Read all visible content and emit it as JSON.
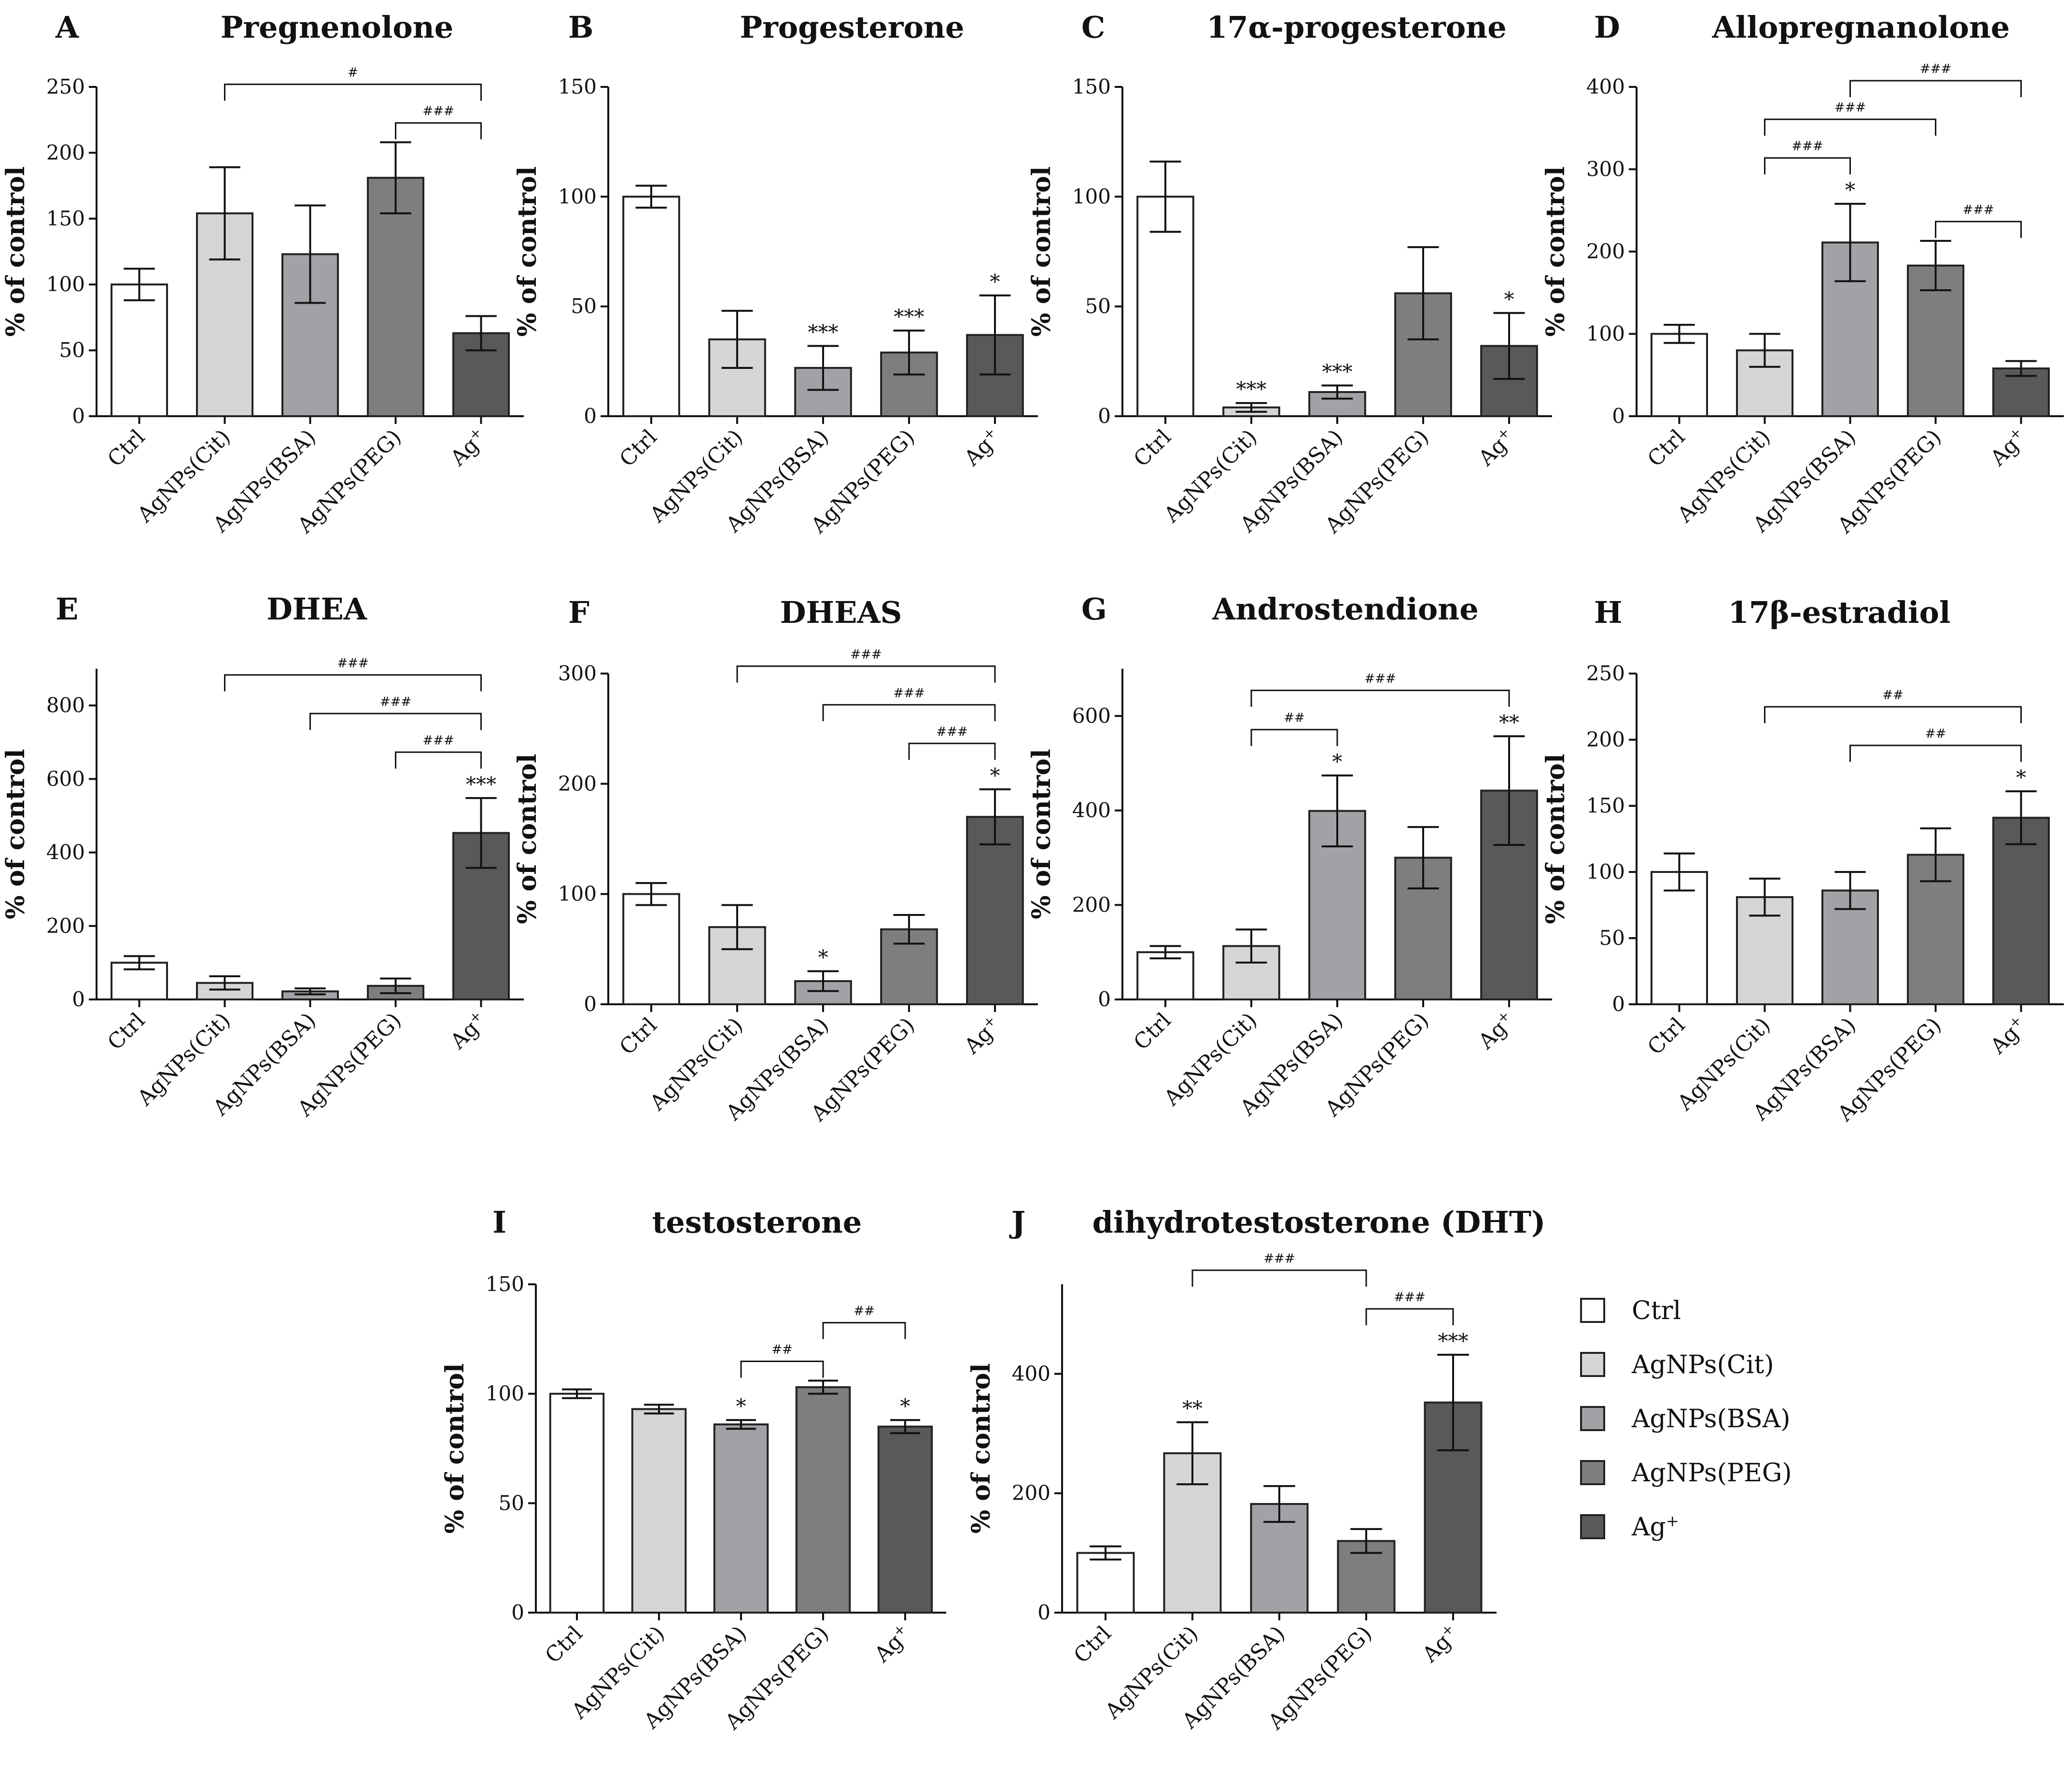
{
  "colors": {
    "Ctrl": "#ffffff",
    "AgNPs(Cit)": "#d5d5d5",
    "AgNPs(BSA)": "#a2a2a6",
    "AgNPs(PEG)": "#7e7e7e",
    "Ag+": "#595959",
    "stroke": "#222222"
  },
  "legend": {
    "items": [
      {
        "label": "Ctrl",
        "key": "Ctrl"
      },
      {
        "label": "AgNPs(Cit)",
        "key": "AgNPs(Cit)"
      },
      {
        "label": "AgNPs(BSA)",
        "key": "AgNPs(BSA)"
      },
      {
        "label": "AgNPs(PEG)",
        "key": "AgNPs(PEG)"
      },
      {
        "label": "Ag",
        "sup": "+",
        "key": "Ag+"
      }
    ]
  },
  "chart_data": [
    {
      "type": "bar",
      "panel": "A",
      "title": "Pregnenolone",
      "ylabel": "% of control",
      "categories": [
        "Ctrl",
        "AgNPs(Cit)",
        "AgNPs(BSA)",
        "AgNPs(PEG)",
        "Ag+"
      ],
      "values": [
        100,
        154,
        123,
        181,
        63
      ],
      "errors": [
        12,
        35,
        37,
        27,
        13
      ],
      "stars": [
        "",
        "",
        "",
        "",
        ""
      ],
      "ylim": [
        0,
        250
      ],
      "yticks": [
        0,
        50,
        100,
        150,
        200,
        250
      ],
      "brackets": [
        {
          "from": 1,
          "to": 4,
          "label": "#"
        },
        {
          "from": 3,
          "to": 4,
          "label": "###"
        }
      ]
    },
    {
      "type": "bar",
      "panel": "B",
      "title": "Progesterone",
      "ylabel": "% of control",
      "categories": [
        "Ctrl",
        "AgNPs(Cit)",
        "AgNPs(BSA)",
        "AgNPs(PEG)",
        "Ag+"
      ],
      "values": [
        100,
        35,
        22,
        29,
        37
      ],
      "errors": [
        5,
        13,
        10,
        10,
        18
      ],
      "stars": [
        "",
        "",
        "***",
        "***",
        "*"
      ],
      "ylim": [
        0,
        150
      ],
      "yticks": [
        0,
        50,
        100,
        150
      ],
      "brackets": []
    },
    {
      "type": "bar",
      "panel": "C",
      "title": "17α-progesterone",
      "ylabel": "% of control",
      "categories": [
        "Ctrl",
        "AgNPs(Cit)",
        "AgNPs(BSA)",
        "AgNPs(PEG)",
        "Ag+"
      ],
      "values": [
        100,
        4,
        11,
        56,
        32
      ],
      "errors": [
        16,
        2,
        3,
        21,
        15
      ],
      "stars": [
        "",
        "***",
        "***",
        "",
        "*"
      ],
      "ylim": [
        0,
        150
      ],
      "yticks": [
        0,
        50,
        100,
        150
      ],
      "brackets": []
    },
    {
      "type": "bar",
      "panel": "D",
      "title": "Allopregnanolone",
      "ylabel": "% of control",
      "categories": [
        "Ctrl",
        "AgNPs(Cit)",
        "AgNPs(BSA)",
        "AgNPs(PEG)",
        "Ag+"
      ],
      "values": [
        100,
        80,
        211,
        183,
        58
      ],
      "errors": [
        11,
        20,
        47,
        30,
        9
      ],
      "stars": [
        "",
        "",
        "*",
        "",
        ""
      ],
      "ylim": [
        0,
        400
      ],
      "yticks": [
        0,
        100,
        200,
        300,
        400
      ],
      "brackets": [
        {
          "from": 1,
          "to": 3,
          "label": "###"
        },
        {
          "from": 1,
          "to": 2,
          "label": "###"
        },
        {
          "from": 2,
          "to": 4,
          "label": "###"
        },
        {
          "from": 3,
          "to": 4,
          "label": "###"
        }
      ]
    },
    {
      "type": "bar",
      "panel": "E",
      "title": "DHEA",
      "ylabel": "% of control",
      "categories": [
        "Ctrl",
        "AgNPs(Cit)",
        "AgNPs(BSA)",
        "AgNPs(PEG)",
        "Ag+"
      ],
      "values": [
        100,
        45,
        22,
        37,
        453
      ],
      "errors": [
        18,
        18,
        8,
        20,
        95
      ],
      "stars": [
        "",
        "",
        "",
        "",
        "***"
      ],
      "ylim": [
        0,
        900
      ],
      "yticks": [
        0,
        200,
        400,
        600,
        800
      ],
      "brackets": [
        {
          "from": 1,
          "to": 4,
          "label": "###"
        },
        {
          "from": 2,
          "to": 4,
          "label": "###"
        },
        {
          "from": 3,
          "to": 4,
          "label": "###"
        }
      ]
    },
    {
      "type": "bar",
      "panel": "F",
      "title": "DHEAS",
      "ylabel": "% of control",
      "categories": [
        "Ctrl",
        "AgNPs(Cit)",
        "AgNPs(BSA)",
        "AgNPs(PEG)",
        "Ag+"
      ],
      "values": [
        100,
        70,
        21,
        68,
        170
      ],
      "errors": [
        10,
        20,
        9,
        13,
        25
      ],
      "stars": [
        "",
        "",
        "*",
        "",
        "*"
      ],
      "ylim": [
        0,
        300
      ],
      "yticks": [
        0,
        100,
        200,
        300
      ],
      "brackets": [
        {
          "from": 1,
          "to": 4,
          "label": "###"
        },
        {
          "from": 2,
          "to": 4,
          "label": "###"
        },
        {
          "from": 3,
          "to": 4,
          "label": "###"
        }
      ]
    },
    {
      "type": "bar",
      "panel": "G",
      "title": "Androstendione",
      "ylabel": "% of control",
      "categories": [
        "Ctrl",
        "AgNPs(Cit)",
        "AgNPs(BSA)",
        "AgNPs(PEG)",
        "Ag+"
      ],
      "values": [
        100,
        113,
        399,
        300,
        442
      ],
      "errors": [
        13,
        35,
        75,
        65,
        115
      ],
      "stars": [
        "",
        "",
        "*",
        "",
        "**"
      ],
      "ylim": [
        0,
        700
      ],
      "yticks": [
        0,
        200,
        400,
        600
      ],
      "brackets": [
        {
          "from": 1,
          "to": 4,
          "label": "###"
        },
        {
          "from": 1,
          "to": 2,
          "label": "##"
        }
      ]
    },
    {
      "type": "bar",
      "panel": "H",
      "title": "17β-estradiol",
      "ylabel": "% of control",
      "categories": [
        "Ctrl",
        "AgNPs(Cit)",
        "AgNPs(BSA)",
        "AgNPs(PEG)",
        "Ag+"
      ],
      "values": [
        100,
        81,
        86,
        113,
        141
      ],
      "errors": [
        14,
        14,
        14,
        20,
        20
      ],
      "stars": [
        "",
        "",
        "",
        "",
        "*"
      ],
      "ylim": [
        0,
        250
      ],
      "yticks": [
        0,
        50,
        100,
        150,
        200,
        250
      ],
      "brackets": [
        {
          "from": 1,
          "to": 4,
          "label": "##"
        },
        {
          "from": 2,
          "to": 4,
          "label": "##"
        }
      ]
    },
    {
      "type": "bar",
      "panel": "I",
      "title": "testosterone",
      "ylabel": "% of control",
      "categories": [
        "Ctrl",
        "AgNPs(Cit)",
        "AgNPs(BSA)",
        "AgNPs(PEG)",
        "Ag+"
      ],
      "values": [
        100,
        93,
        86,
        103,
        85
      ],
      "errors": [
        2,
        2,
        2,
        3,
        3
      ],
      "stars": [
        "",
        "",
        "*",
        "",
        "*"
      ],
      "ylim": [
        0,
        150
      ],
      "yticks": [
        0,
        50,
        100,
        150
      ],
      "brackets": [
        {
          "from": 2,
          "to": 3,
          "label": "##"
        },
        {
          "from": 3,
          "to": 4,
          "label": "##"
        }
      ]
    },
    {
      "type": "bar",
      "panel": "J",
      "title": "dihydrotestosterone (DHT)",
      "ylabel": "% of control",
      "categories": [
        "Ctrl",
        "AgNPs(Cit)",
        "AgNPs(BSA)",
        "AgNPs(PEG)",
        "Ag+"
      ],
      "values": [
        100,
        267,
        182,
        120,
        352
      ],
      "errors": [
        11,
        52,
        30,
        20,
        80
      ],
      "stars": [
        "",
        "**",
        "",
        "",
        "***"
      ],
      "ylim": [
        0,
        550
      ],
      "yticks": [
        0,
        200,
        400
      ],
      "brackets": [
        {
          "from": 1,
          "to": 3,
          "label": "###"
        },
        {
          "from": 3,
          "to": 4,
          "label": "###"
        }
      ]
    }
  ]
}
